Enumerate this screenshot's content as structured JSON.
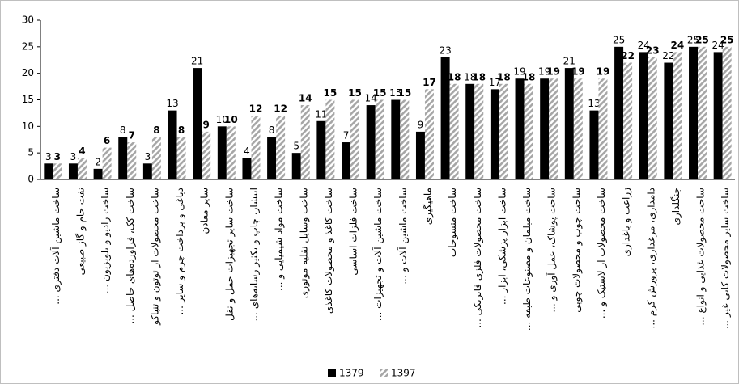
{
  "chart_data": {
    "type": "bar",
    "categories": [
      "ساخت ماشین آلات دفتری ...",
      "نفت خام و گاز طبیعی",
      "ساخت رادیو و تلویزیون ...",
      "ساخت کک، فراورده‌های حاصل ...",
      "ساخت محصولات از توتون و تنباکو",
      "دباغی و پرداخت چرم و سایر ...",
      "سایر معادن",
      "ساخت سایر تجهیزات حمل و نقل",
      "انتشار، چاپ و تکثیر رسانه‌های ...",
      "ساخت مواد شیمیایی و ...",
      "ساخت وسایل نقلیه موتوری",
      "ساخت کاغذ و محصولات کاغذی",
      "ساخت فلزات اساسی",
      "ساخت ماشین آلات و تجهیزات ...",
      "ساخت ماشین آلات و ...",
      "ماهیگیری",
      "ساخت منسوجات",
      "ساخت محصولات فلزی فابریکی ...",
      "ساخت ابزار پزشکی، ابزار ...",
      "ساخت مبلمان و مصنوعات طبقه ...",
      "ساخت پوشاک، عمل آوری و ...",
      "ساخت چوب و محصولات چوبی",
      "ساخت محصولات از لاستیک و ...",
      "زراعت و باغداری",
      "دامداری، مرغداری، پرورش کرم ...",
      "جنگلداری",
      "ساخت محصولات غذایی و انواع ...",
      "ساخت سایر محصولات کانی غیر ..."
    ],
    "series": [
      {
        "name": "1379",
        "color": "#000000",
        "values": [
          3,
          3,
          2,
          8,
          3,
          13,
          21,
          10,
          4,
          8,
          5,
          11,
          7,
          14,
          15,
          9,
          23,
          18,
          17,
          19,
          19,
          21,
          13,
          25,
          24,
          22,
          25,
          24
        ]
      },
      {
        "name": "1397",
        "color": "#a6a6a6",
        "values": [
          3,
          4,
          6,
          7,
          8,
          8,
          9,
          10,
          12,
          12,
          14,
          15,
          15,
          15,
          15,
          17,
          18,
          18,
          18,
          18,
          19,
          19,
          19,
          22,
          23,
          24,
          25,
          25
        ]
      }
    ],
    "ylim": [
      0,
      30
    ],
    "yticks": [
      0,
      5,
      10,
      15,
      20,
      25,
      30
    ],
    "grid": false,
    "legend": "bottom"
  }
}
